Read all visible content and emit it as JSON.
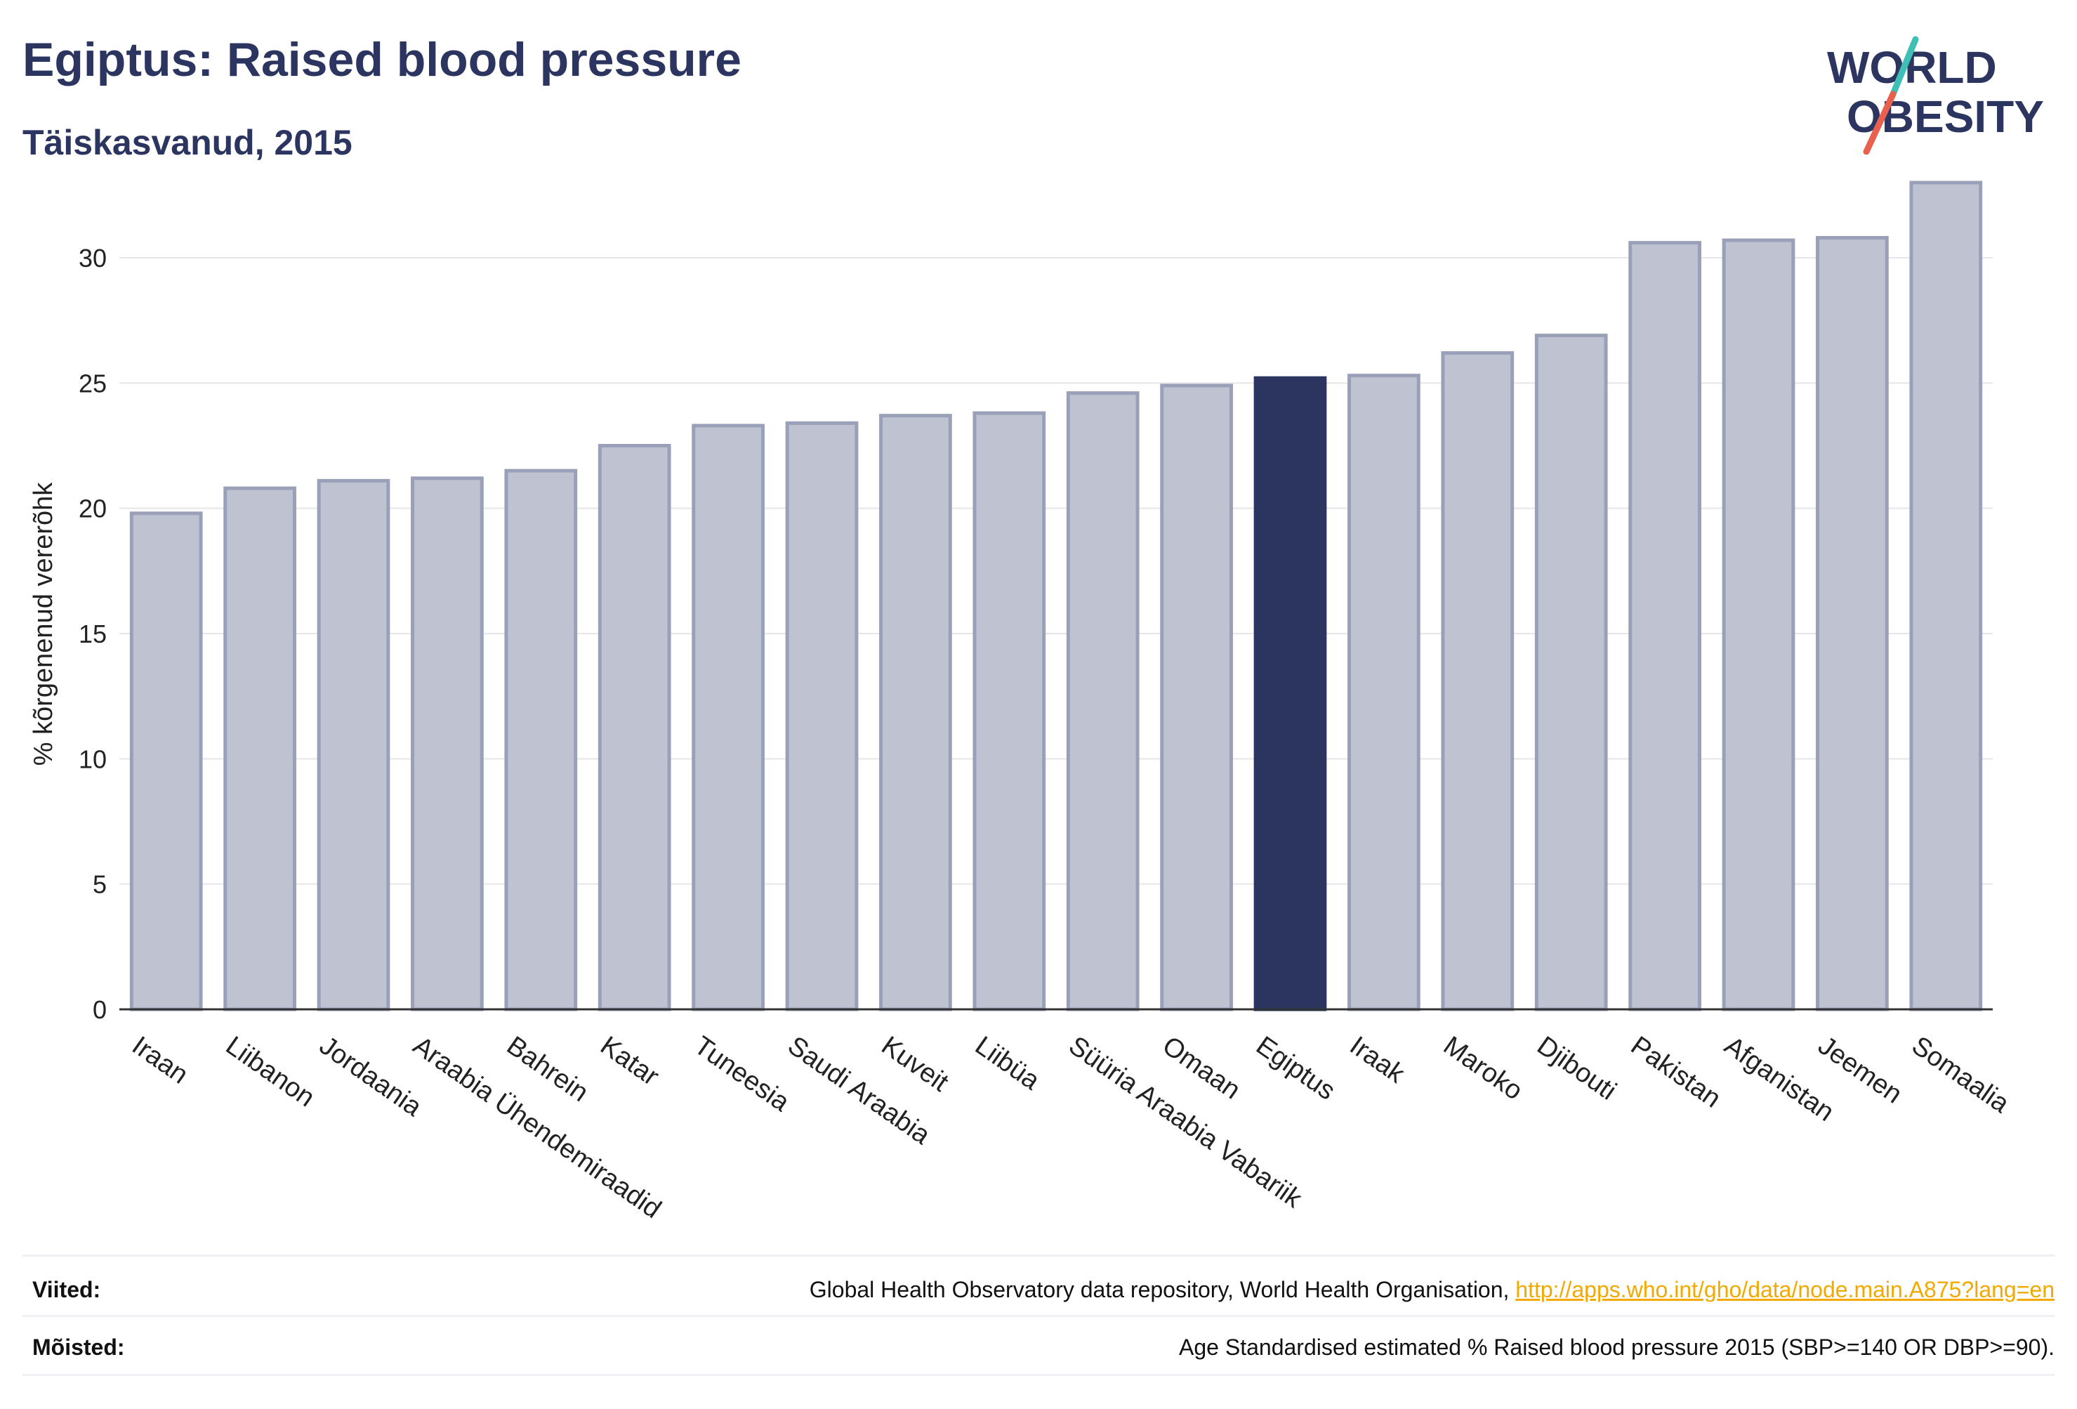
{
  "header": {
    "title": "Egiptus: Raised blood pressure",
    "subtitle": "Täiskasvanud, 2015"
  },
  "logo": {
    "line1": "WORLD",
    "line2": "OBESITY",
    "colors": {
      "text": "#2b3560",
      "slash_teal": "#3fbfb6",
      "slash_red": "#e8614f"
    }
  },
  "colors": {
    "bar_default": "#bfc3d1",
    "bar_border": "#9aa0b8",
    "bar_highlight": "#2b3560",
    "grid": "#e6e6ea",
    "axis": "#333333"
  },
  "chart_data": {
    "type": "bar",
    "title": "Egiptus: Raised blood pressure",
    "subtitle": "Täiskasvanud, 2015",
    "xlabel": "",
    "ylabel": "% kõrgenenud vererõhk",
    "ylim": [
      0,
      33
    ],
    "yticks": [
      0,
      5,
      10,
      15,
      20,
      25,
      30
    ],
    "grid": true,
    "highlight": "Egiptus",
    "categories": [
      "Iraan",
      "Liibanon",
      "Jordaania",
      "Araabia Ühendemiraadid",
      "Bahrein",
      "Katar",
      "Tuneesia",
      "Saudi Araabia",
      "Kuveit",
      "Liibüa",
      "Süüria Araabia Vabariik",
      "Omaan",
      "Egiptus",
      "Iraak",
      "Maroko",
      "Djibouti",
      "Pakistan",
      "Afganistan",
      "Jeemen",
      "Somaalia"
    ],
    "values": [
      19.8,
      20.8,
      21.1,
      21.2,
      21.5,
      22.5,
      23.3,
      23.4,
      23.7,
      23.8,
      24.6,
      24.9,
      25.2,
      25.3,
      26.2,
      26.9,
      30.6,
      30.7,
      30.8,
      33.0
    ]
  },
  "footer": {
    "sources_label": "Viited:",
    "sources_text": "Global Health Observatory data repository, World Health Organisation, ",
    "sources_link": "http://apps.who.int/gho/data/node.main.A875?lang=en",
    "definitions_label": "Mõisted:",
    "definitions_text": "Age Standardised estimated % Raised blood pressure 2015 (SBP>=140 OR DBP>=90)."
  }
}
